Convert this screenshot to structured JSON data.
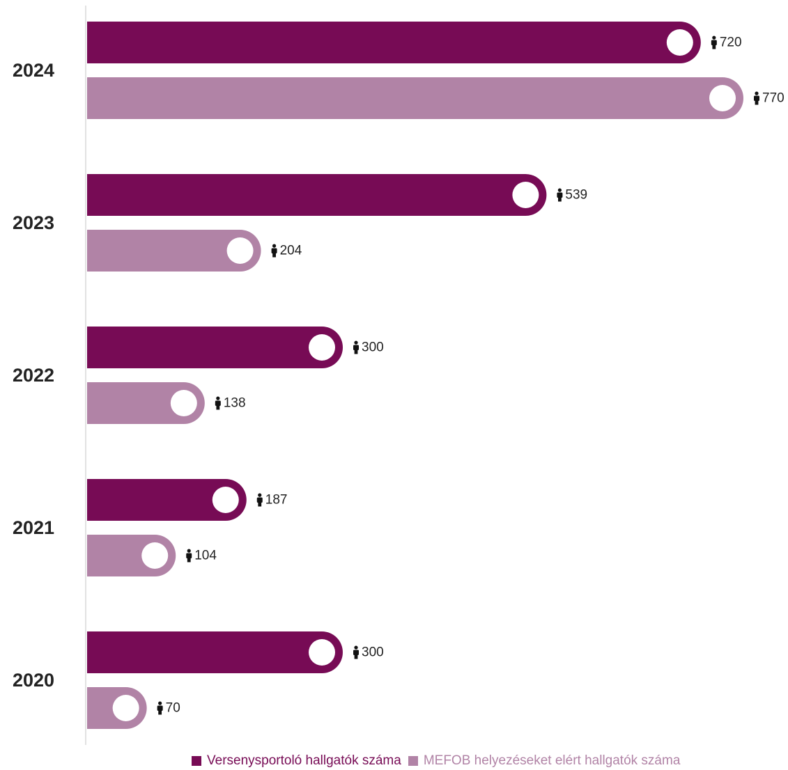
{
  "chart_data": {
    "type": "bar",
    "orientation": "horizontal",
    "categories": [
      "2024",
      "2023",
      "2022",
      "2021",
      "2020"
    ],
    "series": [
      {
        "name": "Versenysportoló hallgatók száma",
        "color": "#770b55",
        "values": [
          720,
          539,
          300,
          187,
          300
        ]
      },
      {
        "name": "MEFOB helyezéseket elért hallgatók száma",
        "color": "#b183a6",
        "values": [
          770,
          204,
          138,
          104,
          70
        ]
      }
    ],
    "title": "",
    "xlabel": "",
    "ylabel": "",
    "xlim": [
      0,
      770
    ],
    "grid": false,
    "legend_position": "bottom",
    "value_icon": "person-icon"
  }
}
